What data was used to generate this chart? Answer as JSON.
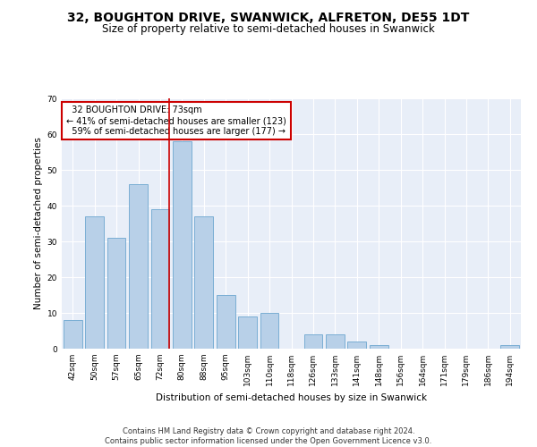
{
  "title": "32, BOUGHTON DRIVE, SWANWICK, ALFRETON, DE55 1DT",
  "subtitle": "Size of property relative to semi-detached houses in Swanwick",
  "xlabel": "Distribution of semi-detached houses by size in Swanwick",
  "ylabel": "Number of semi-detached properties",
  "categories": [
    "42sqm",
    "50sqm",
    "57sqm",
    "65sqm",
    "72sqm",
    "80sqm",
    "88sqm",
    "95sqm",
    "103sqm",
    "110sqm",
    "118sqm",
    "126sqm",
    "133sqm",
    "141sqm",
    "148sqm",
    "156sqm",
    "164sqm",
    "171sqm",
    "179sqm",
    "186sqm",
    "194sqm"
  ],
  "values": [
    8,
    37,
    31,
    46,
    39,
    58,
    37,
    15,
    9,
    10,
    0,
    4,
    4,
    2,
    1,
    0,
    0,
    0,
    0,
    0,
    1
  ],
  "bar_color": "#b8d0e8",
  "bar_edge_color": "#7aaed4",
  "property_label": "32 BOUGHTON DRIVE: 73sqm",
  "pct_smaller": 41,
  "pct_larger": 59,
  "n_smaller": 123,
  "n_larger": 177,
  "annotation_box_color": "#ffffff",
  "annotation_box_edgecolor": "#cc0000",
  "vline_color": "#cc0000",
  "ylim": [
    0,
    70
  ],
  "yticks": [
    0,
    10,
    20,
    30,
    40,
    50,
    60,
    70
  ],
  "footer_line1": "Contains HM Land Registry data © Crown copyright and database right 2024.",
  "footer_line2": "Contains public sector information licensed under the Open Government Licence v3.0.",
  "background_color": "#e8eef8",
  "grid_color": "#ffffff",
  "title_fontsize": 10,
  "subtitle_fontsize": 8.5,
  "axis_label_fontsize": 7.5,
  "tick_fontsize": 6.5,
  "annotation_fontsize": 7,
  "footer_fontsize": 6
}
